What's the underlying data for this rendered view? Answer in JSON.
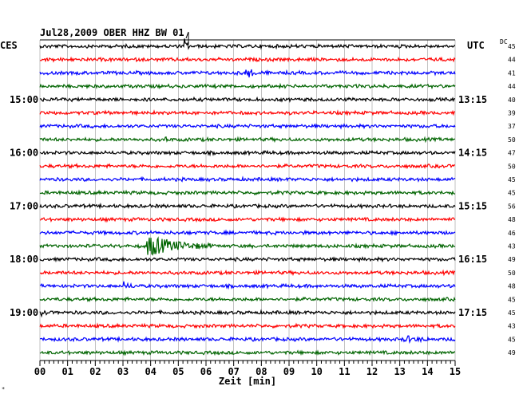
{
  "chart_data": {
    "type": "line",
    "title": "Jul28,2009   OBER HHZ BW 01",
    "left_axis_label": "CES",
    "right_axis_label": "UTC",
    "dc_label": "DC",
    "xlabel": "Zeit [min]",
    "x_ticks": [
      "00",
      "01",
      "02",
      "03",
      "04",
      "05",
      "06",
      "07",
      "08",
      "09",
      "10",
      "11",
      "12",
      "13",
      "14",
      "15"
    ],
    "xlim": [
      0,
      15
    ],
    "left_time_labels": [
      {
        "row": 4,
        "label": "15:00"
      },
      {
        "row": 8,
        "label": "16:00"
      },
      {
        "row": 12,
        "label": "17:00"
      },
      {
        "row": 16,
        "label": "18:00"
      },
      {
        "row": 20,
        "label": "19:00"
      }
    ],
    "right_time_labels": [
      {
        "row": 4,
        "label": "13:15"
      },
      {
        "row": 8,
        "label": "14:15"
      },
      {
        "row": 12,
        "label": "15:15"
      },
      {
        "row": 16,
        "label": "16:15"
      },
      {
        "row": 20,
        "label": "17:15"
      }
    ],
    "trace_colors": [
      "#000000",
      "#ff0000",
      "#0000ff",
      "#006400"
    ],
    "dc_values": [
      45,
      44,
      41,
      44,
      40,
      39,
      37,
      50,
      47,
      50,
      45,
      45,
      56,
      48,
      46,
      43,
      49,
      50,
      48,
      45,
      45,
      43,
      45,
      49
    ],
    "events": [
      {
        "row": 0,
        "start_min": 5.2,
        "dur_min": 0.25,
        "amp": 0.8
      },
      {
        "row": 2,
        "start_min": 7.4,
        "dur_min": 0.6,
        "amp": 0.55
      },
      {
        "row": 15,
        "start_min": 3.8,
        "dur_min": 2.6,
        "amp": 1.0
      },
      {
        "row": 18,
        "start_min": 3.0,
        "dur_min": 0.6,
        "amp": 0.3
      },
      {
        "row": 20,
        "start_min": 0.05,
        "dur_min": 0.3,
        "amp": 0.3
      },
      {
        "row": 22,
        "start_min": 13.1,
        "dur_min": 1.2,
        "amp": 0.25
      },
      {
        "row": 7,
        "start_min": 4.5,
        "dur_min": 0.3,
        "amp": 0.2
      }
    ],
    "grid": true
  }
}
